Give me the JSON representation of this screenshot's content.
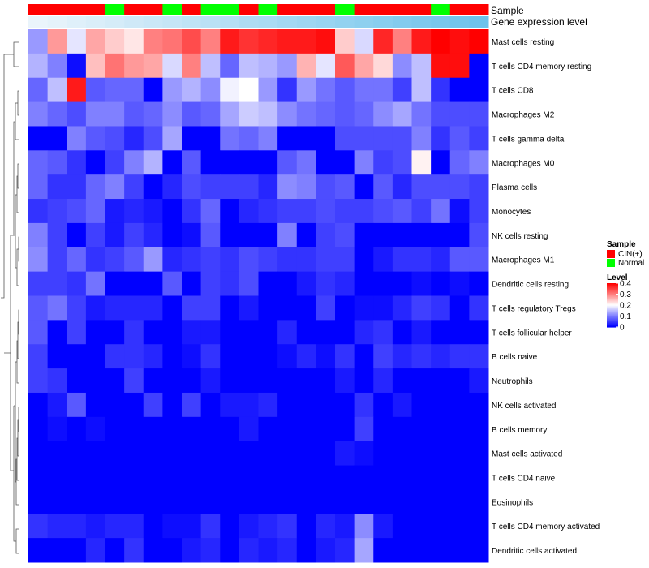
{
  "chart_data": {
    "type": "heatmap",
    "title": "",
    "annotation_tracks": [
      {
        "name": "Sample",
        "values": [
          "CIN(+)",
          "CIN(+)",
          "CIN(+)",
          "CIN(+)",
          "Normal",
          "CIN(+)",
          "CIN(+)",
          "Normal",
          "CIN(+)",
          "Normal",
          "Normal",
          "CIN(+)",
          "Normal",
          "CIN(+)",
          "CIN(+)",
          "CIN(+)",
          "Normal",
          "CIN(+)",
          "CIN(+)",
          "CIN(+)",
          "CIN(+)",
          "Normal",
          "CIN(+)",
          "CIN(+)"
        ]
      },
      {
        "name": "Gene expression level",
        "values": [
          0.0,
          0.04,
          0.09,
          0.13,
          0.17,
          0.22,
          0.26,
          0.3,
          0.35,
          0.39,
          0.43,
          0.48,
          0.52,
          0.57,
          0.61,
          0.65,
          0.7,
          0.74,
          0.78,
          0.83,
          0.87,
          0.91,
          0.96,
          1.0
        ]
      }
    ],
    "rows": [
      "Mast cells resting",
      "T cells CD4 memory resting",
      "T cells CD8",
      "Macrophages M2",
      "T cells gamma delta",
      "Macrophages M0",
      "Plasma cells",
      "Monocytes",
      "NK cells resting",
      "Macrophages M1",
      "Dendritic cells resting",
      "T cells regulatory  Tregs",
      "T cells follicular helper",
      "B cells naive",
      "Neutrophils",
      "NK cells activated",
      "B cells memory",
      "Mast cells activated",
      "T cells CD4 naive",
      "Eosinophils",
      "T cells CD4 memory activated",
      "Dendritic cells activated"
    ],
    "values": [
      [
        0.12,
        0.28,
        0.18,
        0.27,
        0.24,
        0.22,
        0.3,
        0.31,
        0.34,
        0.3,
        0.38,
        0.36,
        0.37,
        0.38,
        0.38,
        0.39,
        0.24,
        0.17,
        0.37,
        0.3,
        0.38,
        0.4,
        0.39,
        0.4
      ],
      [
        0.14,
        0.1,
        0.01,
        0.25,
        0.31,
        0.28,
        0.27,
        0.17,
        0.3,
        0.15,
        0.08,
        0.15,
        0.14,
        0.12,
        0.26,
        0.18,
        0.33,
        0.27,
        0.23,
        0.11,
        0.15,
        0.39,
        0.39,
        0.0
      ],
      [
        0.08,
        0.15,
        0.38,
        0.07,
        0.08,
        0.08,
        0.0,
        0.12,
        0.14,
        0.11,
        0.19,
        0.2,
        0.12,
        0.04,
        0.12,
        0.09,
        0.07,
        0.09,
        0.09,
        0.05,
        0.15,
        0.04,
        0.0,
        0.0
      ],
      [
        0.1,
        0.08,
        0.06,
        0.1,
        0.1,
        0.07,
        0.08,
        0.11,
        0.07,
        0.08,
        0.13,
        0.16,
        0.15,
        0.11,
        0.09,
        0.08,
        0.07,
        0.08,
        0.11,
        0.13,
        0.09,
        0.06,
        0.06,
        0.06
      ],
      [
        0.0,
        0.0,
        0.1,
        0.07,
        0.06,
        0.03,
        0.06,
        0.13,
        0.0,
        0.0,
        0.09,
        0.08,
        0.1,
        0.0,
        0.0,
        0.0,
        0.06,
        0.06,
        0.06,
        0.06,
        0.1,
        0.04,
        0.07,
        0.05
      ],
      [
        0.08,
        0.07,
        0.04,
        0.0,
        0.05,
        0.1,
        0.14,
        0.0,
        0.07,
        0.0,
        0.0,
        0.0,
        0.0,
        0.07,
        0.09,
        0.0,
        0.0,
        0.1,
        0.05,
        0.06,
        0.21,
        0.0,
        0.08,
        0.1
      ],
      [
        0.08,
        0.04,
        0.04,
        0.08,
        0.1,
        0.05,
        0.0,
        0.03,
        0.06,
        0.05,
        0.05,
        0.05,
        0.03,
        0.11,
        0.1,
        0.06,
        0.07,
        0.0,
        0.07,
        0.03,
        0.06,
        0.06,
        0.06,
        0.05
      ],
      [
        0.04,
        0.05,
        0.06,
        0.08,
        0.02,
        0.03,
        0.02,
        0.0,
        0.04,
        0.08,
        0.0,
        0.03,
        0.04,
        0.05,
        0.05,
        0.06,
        0.05,
        0.05,
        0.06,
        0.07,
        0.05,
        0.09,
        0.01,
        0.05
      ],
      [
        0.1,
        0.05,
        0.0,
        0.05,
        0.02,
        0.05,
        0.03,
        0.0,
        0.01,
        0.07,
        0.0,
        0.0,
        0.0,
        0.1,
        0.0,
        0.05,
        0.06,
        0.0,
        0.0,
        0.0,
        0.0,
        0.0,
        0.0,
        0.06
      ],
      [
        0.11,
        0.05,
        0.08,
        0.04,
        0.05,
        0.07,
        0.12,
        0.03,
        0.04,
        0.05,
        0.04,
        0.06,
        0.05,
        0.04,
        0.04,
        0.05,
        0.05,
        0.0,
        0.02,
        0.04,
        0.04,
        0.03,
        0.07,
        0.07
      ],
      [
        0.05,
        0.05,
        0.04,
        0.09,
        0.0,
        0.0,
        0.0,
        0.07,
        0.0,
        0.05,
        0.04,
        0.06,
        0.0,
        0.0,
        0.02,
        0.04,
        0.03,
        0.0,
        0.0,
        0.0,
        0.01,
        0.0,
        0.01,
        0.0
      ],
      [
        0.07,
        0.09,
        0.05,
        0.02,
        0.03,
        0.03,
        0.03,
        0.0,
        0.05,
        0.05,
        0.0,
        0.02,
        0.0,
        0.0,
        0.0,
        0.05,
        0.0,
        0.01,
        0.01,
        0.03,
        0.05,
        0.04,
        0.0,
        0.04
      ],
      [
        0.07,
        0.0,
        0.05,
        0.0,
        0.0,
        0.04,
        0.0,
        0.0,
        0.02,
        0.02,
        0.0,
        0.0,
        0.0,
        0.03,
        0.0,
        0.0,
        0.0,
        0.03,
        0.04,
        0.0,
        0.02,
        0.0,
        0.0,
        0.0
      ],
      [
        0.05,
        0.0,
        0.0,
        0.0,
        0.04,
        0.04,
        0.03,
        0.0,
        0.01,
        0.04,
        0.0,
        0.0,
        0.0,
        0.01,
        0.03,
        0.01,
        0.04,
        0.0,
        0.05,
        0.03,
        0.04,
        0.03,
        0.04,
        0.04
      ],
      [
        0.05,
        0.04,
        0.0,
        0.0,
        0.0,
        0.05,
        0.0,
        0.0,
        0.0,
        0.02,
        0.0,
        0.0,
        0.0,
        0.0,
        0.0,
        0.0,
        0.02,
        0.0,
        0.03,
        0.0,
        0.0,
        0.0,
        0.0,
        0.02
      ],
      [
        0.0,
        0.02,
        0.07,
        0.0,
        0.0,
        0.0,
        0.05,
        0.0,
        0.05,
        0.0,
        0.02,
        0.02,
        0.03,
        0.0,
        0.0,
        0.0,
        0.0,
        0.04,
        0.0,
        0.02,
        0.0,
        0.0,
        0.0,
        0.0
      ],
      [
        0.0,
        0.01,
        0.0,
        0.01,
        0.0,
        0.0,
        0.0,
        0.0,
        0.0,
        0.0,
        0.0,
        0.02,
        0.0,
        0.0,
        0.0,
        0.0,
        0.0,
        0.05,
        0.0,
        0.0,
        0.0,
        0.0,
        0.0,
        0.0
      ],
      [
        0.0,
        0.0,
        0.0,
        0.0,
        0.0,
        0.0,
        0.0,
        0.0,
        0.0,
        0.0,
        0.0,
        0.0,
        0.0,
        0.0,
        0.0,
        0.0,
        0.02,
        0.01,
        0.0,
        0.0,
        0.0,
        0.0,
        0.0,
        0.0
      ],
      [
        0.0,
        0.0,
        0.0,
        0.0,
        0.0,
        0.0,
        0.0,
        0.0,
        0.0,
        0.0,
        0.0,
        0.0,
        0.0,
        0.0,
        0.0,
        0.0,
        0.0,
        0.0,
        0.0,
        0.0,
        0.0,
        0.0,
        0.0,
        0.0
      ],
      [
        0.0,
        0.0,
        0.0,
        0.0,
        0.0,
        0.0,
        0.0,
        0.0,
        0.0,
        0.0,
        0.0,
        0.0,
        0.0,
        0.0,
        0.0,
        0.0,
        0.0,
        0.0,
        0.0,
        0.0,
        0.0,
        0.0,
        0.0,
        0.0
      ],
      [
        0.04,
        0.03,
        0.03,
        0.02,
        0.03,
        0.03,
        0.0,
        0.01,
        0.01,
        0.04,
        0.0,
        0.02,
        0.03,
        0.04,
        0.0,
        0.03,
        0.02,
        0.11,
        0.02,
        0.0,
        0.0,
        0.0,
        0.0,
        0.0
      ],
      [
        0.0,
        0.0,
        0.0,
        0.03,
        0.0,
        0.04,
        0.0,
        0.0,
        0.02,
        0.03,
        0.0,
        0.03,
        0.02,
        0.03,
        0.0,
        0.02,
        0.03,
        0.13,
        0.0,
        0.0,
        0.0,
        0.0,
        0.0,
        0.0
      ]
    ],
    "colorscale": {
      "low": "#0000FF",
      "mid": "#FFFFFF",
      "high": "#FF0000",
      "min": 0,
      "mid_value": 0.2,
      "max": 0.4
    },
    "legend": {
      "sample_title": "Sample",
      "sample_items": [
        {
          "label": "CIN(+)",
          "color": "#FF0000"
        },
        {
          "label": "Normal",
          "color": "#00FF00"
        }
      ],
      "level_title": "Level",
      "level_ticks": [
        {
          "value": 0.4,
          "label": "0.4"
        },
        {
          "value": 0.3,
          "label": "0.3"
        },
        {
          "value": 0.2,
          "label": "0.2"
        },
        {
          "value": 0.1,
          "label": "0.1"
        },
        {
          "value": 0,
          "label": "0"
        }
      ]
    },
    "expression_track_colors": {
      "low": "#EAF4FB",
      "high": "#6EC3EB"
    },
    "row_dendrogram": true,
    "legend_position": "right"
  }
}
